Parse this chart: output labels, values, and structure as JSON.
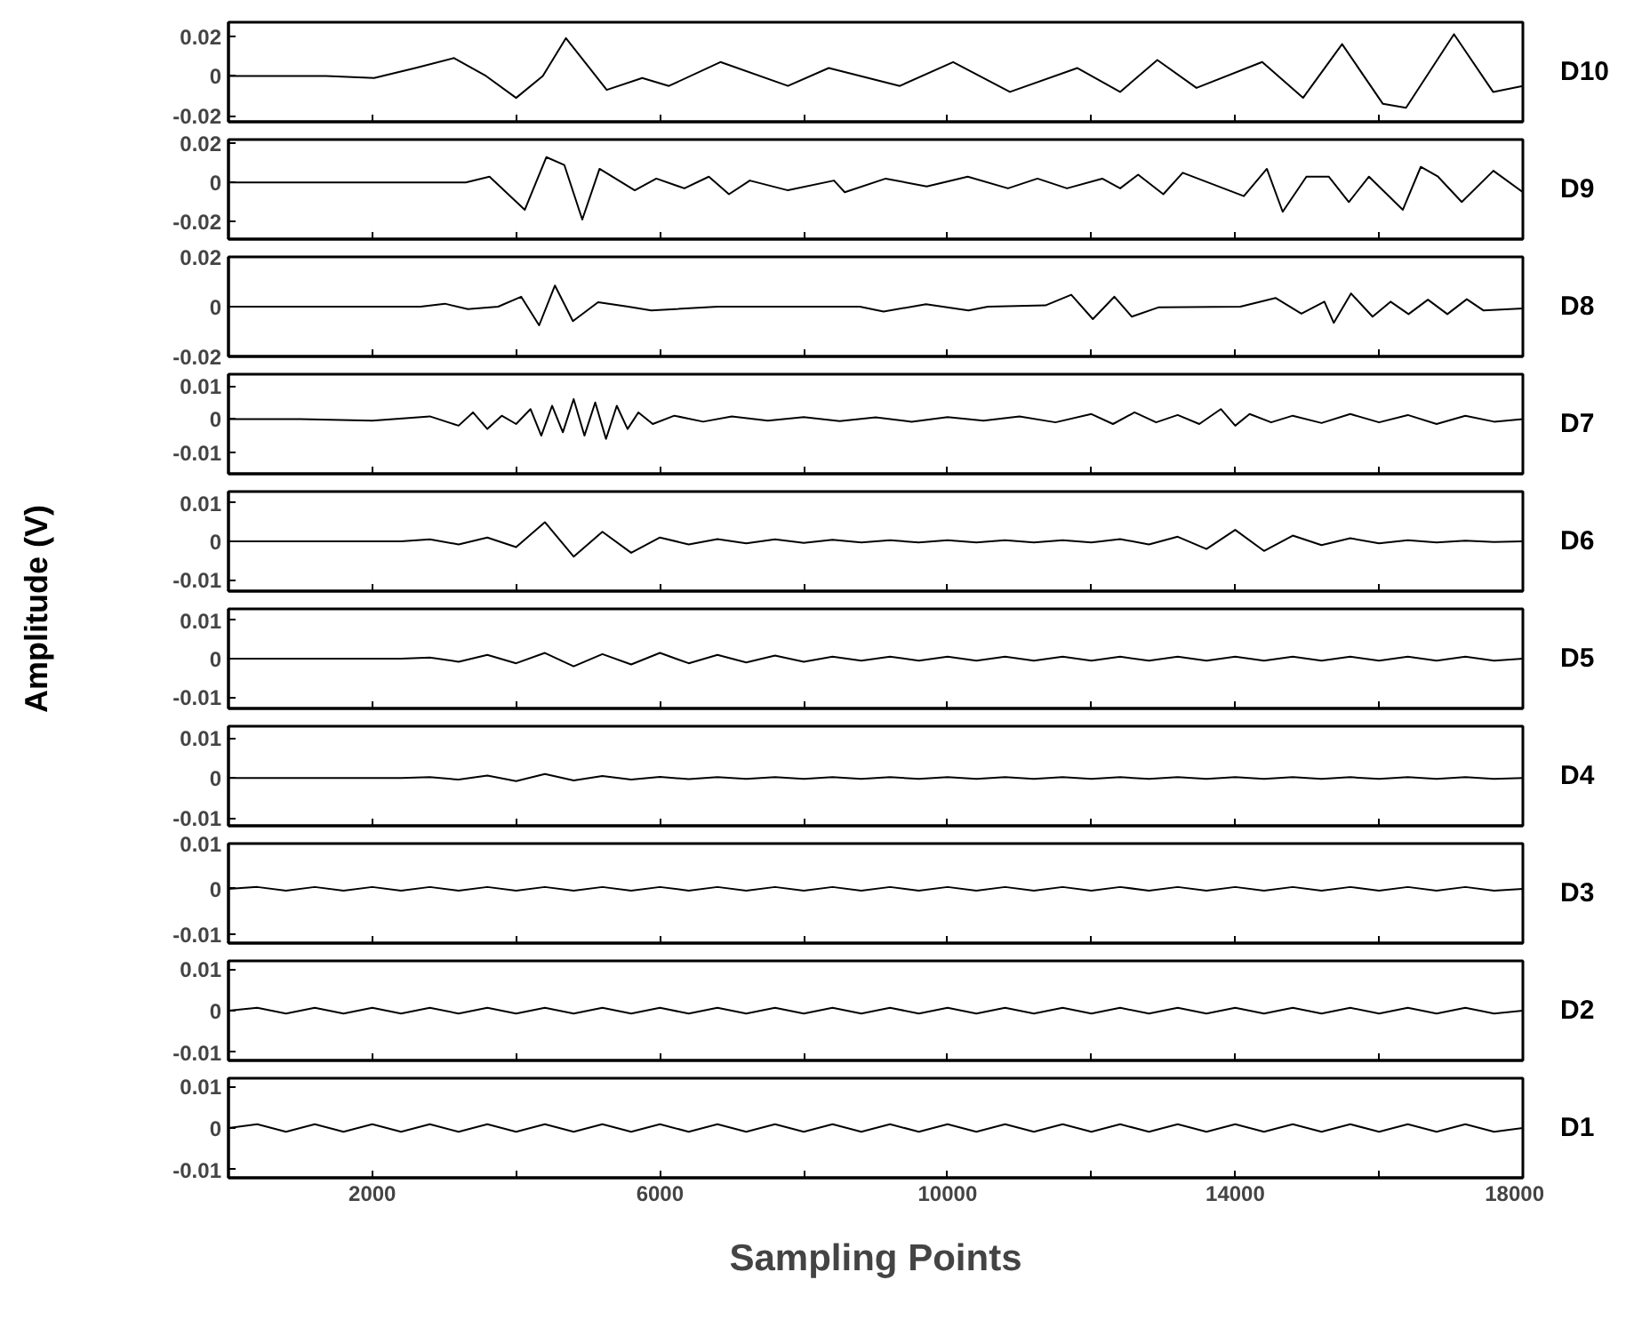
{
  "chart_data": [
    {
      "type": "line",
      "xlim": [
        0,
        18000
      ],
      "ylim": [
        -0.023,
        0.027
      ],
      "yticks": [
        0.02,
        0,
        -0.02
      ],
      "xticks": [
        2000,
        {
          "value": 4000,
          "label": null
        },
        6000,
        {
          "value": 8000,
          "label": null
        },
        10000,
        {
          "value": 12000,
          "label": null
        },
        14000,
        {
          "value": 16000,
          "label": null
        },
        18000
      ],
      "tick_labels": "y",
      "series": [
        {
          "name": "D10",
          "color": "#000000",
          "x": [
            0,
            1358,
            2025,
            2600,
            3136,
            3581,
            4000,
            4371,
            4692,
            5000,
            5260,
            5754,
            6125,
            6841,
            7780,
            8348,
            9336,
            10077,
            10867,
            11806,
            12399,
            12917,
            13461,
            14375,
            14943,
            15486,
            16054,
            16375,
            17042,
            17586,
            18000
          ],
          "values": [
            0,
            0,
            -0.001,
            0.004,
            0.009,
            0,
            -0.011,
            0,
            0.019,
            0.005,
            -0.007,
            -0.001,
            -0.005,
            0.007,
            -0.005,
            0.004,
            -0.005,
            0.007,
            -0.008,
            0.004,
            -0.008,
            0.008,
            -0.006,
            0.007,
            -0.011,
            0.016,
            -0.014,
            -0.016,
            0.021,
            -0.008,
            -0.005
          ]
        }
      ]
    },
    {
      "type": "line",
      "xlim": [
        0,
        18000
      ],
      "ylim": [
        -0.029,
        0.022
      ],
      "yticks": [
        0.02,
        0,
        -0.02
      ],
      "xticks": [
        2000,
        {
          "value": 4000,
          "label": null
        },
        6000,
        {
          "value": 8000,
          "label": null
        },
        10000,
        {
          "value": 12000,
          "label": null
        },
        14000,
        {
          "value": 16000,
          "label": null
        },
        18000
      ],
      "tick_labels": "y",
      "series": [
        {
          "name": "D9",
          "color": "#000000",
          "x": [
            0,
            3300,
            3630,
            4120,
            4420,
            4670,
            4920,
            5160,
            5650,
            5950,
            6340,
            6680,
            6960,
            7250,
            7780,
            8420,
            8570,
            9140,
            9710,
            10280,
            10840,
            11250,
            11660,
            12150,
            12400,
            12650,
            13000,
            13270,
            14120,
            14440,
            14660,
            14990,
            15300,
            15580,
            15860,
            16330,
            16580,
            16820,
            17150,
            17590,
            18000
          ],
          "values": [
            0,
            0,
            0.003,
            -0.014,
            0.013,
            0.009,
            -0.019,
            0.007,
            -0.004,
            0.002,
            -0.003,
            0.003,
            -0.006,
            0.001,
            -0.004,
            0.001,
            -0.005,
            0.002,
            -0.002,
            0.003,
            -0.003,
            0.002,
            -0.003,
            0.002,
            -0.003,
            0.004,
            -0.006,
            0.005,
            -0.007,
            0.007,
            -0.015,
            0.003,
            0.003,
            -0.01,
            0.003,
            -0.014,
            0.008,
            0.003,
            -0.01,
            0.006,
            -0.005
          ]
        }
      ]
    },
    {
      "type": "line",
      "xlim": [
        0,
        18000
      ],
      "ylim": [
        -0.02,
        0.02
      ],
      "yticks": [
        0.02,
        0,
        -0.02
      ],
      "xticks": [
        2000,
        {
          "value": 4000,
          "label": null
        },
        6000,
        {
          "value": 8000,
          "label": null
        },
        10000,
        {
          "value": 12000,
          "label": null
        },
        14000,
        {
          "value": 16000,
          "label": null
        },
        18000
      ],
      "tick_labels": "y",
      "series": [
        {
          "name": "D8",
          "color": "#000000",
          "x": [
            0,
            2670,
            3010,
            3330,
            3750,
            4070,
            4320,
            4540,
            4790,
            5140,
            5560,
            5880,
            6800,
            7370,
            8780,
            9110,
            9700,
            10290,
            10560,
            11360,
            11720,
            12020,
            12320,
            12560,
            12930,
            14070,
            14560,
            14920,
            15240,
            15370,
            15610,
            15910,
            16160,
            16410,
            16680,
            16950,
            17220,
            17450,
            18000
          ],
          "values": [
            0,
            0,
            0.0012,
            -0.001,
            0,
            0.004,
            -0.0075,
            0.0085,
            -0.0058,
            0.0018,
            0,
            -0.0015,
            0,
            0,
            0,
            -0.002,
            0.001,
            -0.0015,
            0,
            0.0005,
            0.0048,
            -0.005,
            0.004,
            -0.004,
            -0.0003,
            0,
            0.0035,
            -0.0028,
            0.002,
            -0.0065,
            0.0053,
            -0.004,
            0.002,
            -0.003,
            0.0028,
            -0.003,
            0.003,
            -0.0015,
            -0.0007
          ]
        }
      ]
    },
    {
      "type": "line",
      "xlim": [
        0,
        18000
      ],
      "ylim": [
        -0.0165,
        0.0135
      ],
      "yticks": [
        0.01,
        0,
        -0.01
      ],
      "xticks": [
        2000,
        {
          "value": 4000,
          "label": null
        },
        6000,
        {
          "value": 8000,
          "label": null
        },
        10000,
        {
          "value": 12000,
          "label": null
        },
        14000,
        {
          "value": 16000,
          "label": null
        },
        18000
      ],
      "tick_labels": "y",
      "series": [
        {
          "name": "D7",
          "color": "#000000",
          "x": [
            0,
            1000,
            2000,
            2800,
            3200,
            3400,
            3600,
            3800,
            4000,
            4200,
            4350,
            4500,
            4650,
            4800,
            4950,
            5100,
            5250,
            5400,
            5550,
            5700,
            5900,
            6200,
            6600,
            7000,
            7500,
            8000,
            8500,
            9000,
            9500,
            10000,
            10500,
            11000,
            11500,
            12000,
            12300,
            12600,
            12900,
            13200,
            13500,
            13800,
            14000,
            14200,
            14500,
            14800,
            15200,
            15600,
            16000,
            16400,
            16800,
            17200,
            17600,
            18000
          ],
          "values": [
            0,
            0,
            -0.0005,
            0.0008,
            -0.002,
            0.002,
            -0.003,
            0.001,
            -0.0015,
            0.003,
            -0.005,
            0.004,
            -0.004,
            0.006,
            -0.005,
            0.005,
            -0.006,
            0.004,
            -0.003,
            0.002,
            -0.0015,
            0.001,
            -0.0008,
            0.0008,
            -0.0005,
            0.0006,
            -0.0006,
            0.0005,
            -0.0008,
            0.0006,
            -0.0005,
            0.0008,
            -0.001,
            0.0015,
            -0.0015,
            0.002,
            -0.001,
            0.0012,
            -0.0015,
            0.003,
            -0.002,
            0.0015,
            -0.001,
            0.001,
            -0.0012,
            0.0015,
            -0.001,
            0.0012,
            -0.0015,
            0.001,
            -0.0008,
            0
          ]
        }
      ]
    },
    {
      "type": "line",
      "xlim": [
        0,
        18000
      ],
      "ylim": [
        -0.013,
        0.013
      ],
      "yticks": [
        0.01,
        0,
        -0.01
      ],
      "xticks": [
        2000,
        {
          "value": 4000,
          "label": null
        },
        6000,
        {
          "value": 8000,
          "label": null
        },
        10000,
        {
          "value": 12000,
          "label": null
        },
        14000,
        {
          "value": 16000,
          "label": null
        },
        18000
      ],
      "tick_labels": "y",
      "x": [
        0,
        400,
        800,
        1200,
        1600,
        2000,
        2400,
        2800,
        3200,
        3600,
        4000,
        4400,
        4800,
        5200,
        5600,
        6000,
        6400,
        6800,
        7200,
        7600,
        8000,
        8400,
        8800,
        9200,
        9600,
        10000,
        10400,
        10800,
        11200,
        11600,
        12000,
        12400,
        12800,
        13200,
        13600,
        14000,
        14400,
        14800,
        15200,
        15600,
        16000,
        16400,
        16800,
        17200,
        17600,
        18000
      ],
      "series": [
        {
          "name": "D6",
          "color": "#000000",
          "values": [
            0,
            0,
            0,
            0,
            0,
            0,
            0,
            0.0005,
            -0.0008,
            0.001,
            -0.0015,
            0.005,
            -0.004,
            0.0025,
            -0.003,
            0.001,
            -0.0008,
            0.0006,
            -0.0005,
            0.0005,
            -0.0004,
            0.0004,
            -0.0003,
            0.0003,
            -0.0003,
            0.0003,
            -0.0003,
            0.0003,
            -0.0003,
            0.0003,
            -0.0003,
            0.0006,
            -0.0008,
            0.0012,
            -0.002,
            0.003,
            -0.0025,
            0.0015,
            -0.001,
            0.0008,
            -0.0005,
            0.0003,
            -0.0003,
            0.0002,
            -0.0002,
            0
          ]
        }
      ]
    },
    {
      "type": "line",
      "xlim": [
        0,
        18000
      ],
      "ylim": [
        -0.013,
        0.013
      ],
      "yticks": [
        0.01,
        0,
        -0.01
      ],
      "xticks": [
        2000,
        {
          "value": 4000,
          "label": null
        },
        6000,
        {
          "value": 8000,
          "label": null
        },
        10000,
        {
          "value": 12000,
          "label": null
        },
        14000,
        {
          "value": 16000,
          "label": null
        },
        18000
      ],
      "tick_labels": "y",
      "ylabel": "Amplitude (V)",
      "x": [
        0,
        400,
        800,
        1200,
        1600,
        2000,
        2400,
        2800,
        3200,
        3600,
        4000,
        4400,
        4800,
        5200,
        5600,
        6000,
        6400,
        6800,
        7200,
        7600,
        8000,
        8400,
        8800,
        9200,
        9600,
        10000,
        10400,
        10800,
        11200,
        11600,
        12000,
        12400,
        12800,
        13200,
        13600,
        14000,
        14400,
        14800,
        15200,
        15600,
        16000,
        16400,
        16800,
        17200,
        17600,
        18000
      ],
      "series": [
        {
          "name": "D5",
          "color": "#000000",
          "values": [
            0,
            0,
            0,
            0,
            0,
            0,
            0,
            0.0003,
            -0.0008,
            0.001,
            -0.0012,
            0.0015,
            -0.002,
            0.0012,
            -0.0015,
            0.0015,
            -0.0012,
            0.001,
            -0.001,
            0.0008,
            -0.0008,
            0.0005,
            -0.0005,
            0.0005,
            -0.0005,
            0.0005,
            -0.0005,
            0.0005,
            -0.0005,
            0.0005,
            -0.0005,
            0.0005,
            -0.0005,
            0.0005,
            -0.0005,
            0.0005,
            -0.0005,
            0.0005,
            -0.0005,
            0.0005,
            -0.0005,
            0.0005,
            -0.0005,
            0.0005,
            -0.0005,
            0
          ]
        }
      ]
    },
    {
      "type": "line",
      "xlim": [
        0,
        18000
      ],
      "ylim": [
        -0.012,
        0.013
      ],
      "yticks": [
        0.01,
        0,
        -0.01
      ],
      "xticks": [
        2000,
        {
          "value": 4000,
          "label": null
        },
        6000,
        {
          "value": 8000,
          "label": null
        },
        10000,
        {
          "value": 12000,
          "label": null
        },
        14000,
        {
          "value": 16000,
          "label": null
        },
        18000
      ],
      "tick_labels": "y",
      "x": [
        0,
        400,
        800,
        1200,
        1600,
        2000,
        2400,
        2800,
        3200,
        3600,
        4000,
        4400,
        4800,
        5200,
        5600,
        6000,
        6400,
        6800,
        7200,
        7600,
        8000,
        8400,
        8800,
        9200,
        9600,
        10000,
        10400,
        10800,
        11200,
        11600,
        12000,
        12400,
        12800,
        13200,
        13600,
        14000,
        14400,
        14800,
        15200,
        15600,
        16000,
        16400,
        16800,
        17200,
        17600,
        18000
      ],
      "series": [
        {
          "name": "D4",
          "color": "#000000",
          "values": [
            0,
            0,
            0,
            0,
            0,
            0,
            0,
            0.0002,
            -0.0004,
            0.0006,
            -0.0008,
            0.001,
            -0.0006,
            0.0005,
            -0.0004,
            0.0003,
            -0.0003,
            0.0002,
            -0.0002,
            0.0002,
            -0.0002,
            0.0002,
            -0.0002,
            0.0002,
            -0.0002,
            0.0002,
            -0.0002,
            0.0002,
            -0.0002,
            0.0002,
            -0.0002,
            0.0002,
            -0.0002,
            0.0002,
            -0.0002,
            0.0002,
            -0.0002,
            0.0002,
            -0.0002,
            0.0002,
            -0.0002,
            0.0002,
            -0.0002,
            0.0002,
            -0.0002,
            0
          ]
        }
      ]
    },
    {
      "type": "line",
      "xlim": [
        0,
        18000
      ],
      "ylim": [
        -0.012,
        0.01
      ],
      "yticks": [
        0.01,
        0,
        -0.01
      ],
      "xticks": [
        2000,
        {
          "value": 4000,
          "label": null
        },
        6000,
        {
          "value": 8000,
          "label": null
        },
        10000,
        {
          "value": 12000,
          "label": null
        },
        14000,
        {
          "value": 16000,
          "label": null
        },
        18000
      ],
      "tick_labels": "y",
      "x": [
        0,
        400,
        800,
        1200,
        1600,
        2000,
        2400,
        2800,
        3200,
        3600,
        4000,
        4400,
        4800,
        5200,
        5600,
        6000,
        6400,
        6800,
        7200,
        7600,
        8000,
        8400,
        8800,
        9200,
        9600,
        10000,
        10400,
        10800,
        11200,
        11600,
        12000,
        12400,
        12800,
        13200,
        13600,
        14000,
        14400,
        14800,
        15200,
        15600,
        16000,
        16400,
        16800,
        17200,
        17600,
        18000
      ],
      "series": [
        {
          "name": "D3",
          "color": "#000000",
          "values": [
            0,
            0.0004,
            -0.0004,
            0.0004,
            -0.0004,
            0.0004,
            -0.0004,
            0.0004,
            -0.0004,
            0.0004,
            -0.0004,
            0.0004,
            -0.0004,
            0.0004,
            -0.0004,
            0.0004,
            -0.0004,
            0.0004,
            -0.0004,
            0.0004,
            -0.0004,
            0.0004,
            -0.0004,
            0.0004,
            -0.0004,
            0.0004,
            -0.0004,
            0.0004,
            -0.0004,
            0.0004,
            -0.0004,
            0.0004,
            -0.0004,
            0.0004,
            -0.0004,
            0.0004,
            -0.0004,
            0.0004,
            -0.0004,
            0.0004,
            -0.0004,
            0.0004,
            -0.0004,
            0.0004,
            -0.0004,
            0
          ]
        }
      ]
    },
    {
      "type": "line",
      "xlim": [
        0,
        18000
      ],
      "ylim": [
        -0.012,
        0.012
      ],
      "yticks": [
        0.01,
        0,
        -0.01
      ],
      "xticks": [
        2000,
        {
          "value": 4000,
          "label": null
        },
        6000,
        {
          "value": 8000,
          "label": null
        },
        10000,
        {
          "value": 12000,
          "label": null
        },
        14000,
        {
          "value": 16000,
          "label": null
        },
        18000
      ],
      "tick_labels": "y",
      "x": [
        0,
        400,
        800,
        1200,
        1600,
        2000,
        2400,
        2800,
        3200,
        3600,
        4000,
        4400,
        4800,
        5200,
        5600,
        6000,
        6400,
        6800,
        7200,
        7600,
        8000,
        8400,
        8800,
        9200,
        9600,
        10000,
        10400,
        10800,
        11200,
        11600,
        12000,
        12400,
        12800,
        13200,
        13600,
        14000,
        14400,
        14800,
        15200,
        15600,
        16000,
        16400,
        16800,
        17200,
        17600,
        18000
      ],
      "series": [
        {
          "name": "D2",
          "color": "#000000",
          "values": [
            0,
            0.0007,
            -0.0007,
            0.0007,
            -0.0007,
            0.0007,
            -0.0007,
            0.0007,
            -0.0007,
            0.0007,
            -0.0007,
            0.0007,
            -0.0007,
            0.0007,
            -0.0007,
            0.0007,
            -0.0007,
            0.0007,
            -0.0007,
            0.0007,
            -0.0007,
            0.0007,
            -0.0007,
            0.0007,
            -0.0007,
            0.0007,
            -0.0007,
            0.0007,
            -0.0007,
            0.0007,
            -0.0007,
            0.0007,
            -0.0007,
            0.0007,
            -0.0007,
            0.0007,
            -0.0007,
            0.0007,
            -0.0007,
            0.0007,
            -0.0007,
            0.0007,
            -0.0007,
            0.0007,
            -0.0007,
            0
          ]
        }
      ]
    },
    {
      "type": "line",
      "xlim": [
        0,
        18000
      ],
      "ylim": [
        -0.012,
        0.012
      ],
      "yticks": [
        0.01,
        0,
        -0.01
      ],
      "xticks": [
        2000,
        {
          "value": 4000,
          "label": null
        },
        6000,
        {
          "value": 8000,
          "label": null
        },
        10000,
        {
          "value": 12000,
          "label": null
        },
        14000,
        {
          "value": 16000,
          "label": null
        },
        18000
      ],
      "xlabel": "Sampling Points",
      "x": [
        0,
        400,
        800,
        1200,
        1600,
        2000,
        2400,
        2800,
        3200,
        3600,
        4000,
        4400,
        4800,
        5200,
        5600,
        6000,
        6400,
        6800,
        7200,
        7600,
        8000,
        8400,
        8800,
        9200,
        9600,
        10000,
        10400,
        10800,
        11200,
        11600,
        12000,
        12400,
        12800,
        13200,
        13600,
        14000,
        14400,
        14800,
        15200,
        15600,
        16000,
        16400,
        16800,
        17200,
        17600,
        18000
      ],
      "series": [
        {
          "name": "D1",
          "color": "#000000",
          "values": [
            0,
            0.0009,
            -0.0009,
            0.0009,
            -0.0009,
            0.0009,
            -0.0009,
            0.0009,
            -0.0009,
            0.0009,
            -0.0009,
            0.0009,
            -0.0009,
            0.0009,
            -0.0009,
            0.0009,
            -0.0009,
            0.0009,
            -0.0009,
            0.0009,
            -0.0009,
            0.0009,
            -0.0009,
            0.0009,
            -0.0009,
            0.0009,
            -0.0009,
            0.0009,
            -0.0009,
            0.0009,
            -0.0009,
            0.0009,
            -0.0009,
            0.0009,
            -0.0009,
            0.0009,
            -0.0009,
            0.0009,
            -0.0009,
            0.0009,
            -0.0009,
            0.0009,
            -0.0009,
            0.0009,
            -0.0009,
            0
          ]
        }
      ]
    }
  ]
}
